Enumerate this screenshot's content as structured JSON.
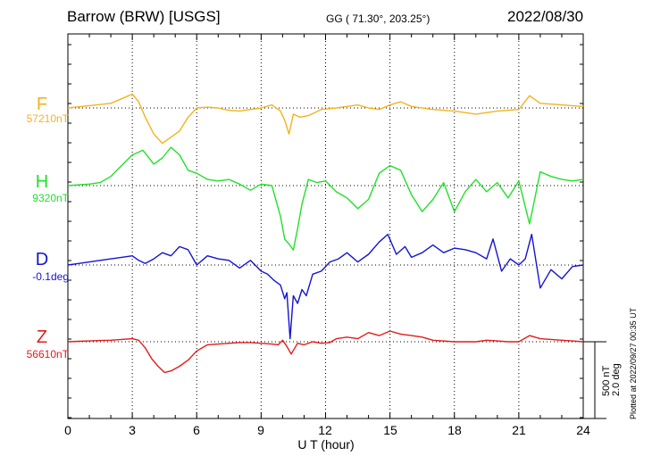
{
  "header": {
    "station": "Barrow (BRW)  [USGS]",
    "coords": "GG ( 71.30°, 203.25°)",
    "date": "2022/08/30"
  },
  "components": [
    {
      "letter": "F",
      "baseline": "57210nT",
      "color": "#f5b21e"
    },
    {
      "letter": "H",
      "baseline": "9320nT",
      "color": "#22e02a"
    },
    {
      "letter": "D",
      "baseline": "-0.1deg",
      "color": "#1414d2"
    },
    {
      "letter": "Z",
      "baseline": "56610nT",
      "color": "#e31b1b"
    }
  ],
  "scale_bar": {
    "nt": "500 nT",
    "deg": "2.0 deg"
  },
  "plotted_at": "Plotted at 2022/09/27 00:35 UT",
  "chart_data": {
    "type": "line",
    "xlabel": "U T (hour)",
    "xlim": [
      0,
      24
    ],
    "x_ticks": [
      "0",
      "3",
      "6",
      "9",
      "12",
      "15",
      "18",
      "21",
      "24"
    ],
    "series": [
      {
        "name": "F",
        "color": "#f5b21e",
        "x": [
          0,
          1,
          2,
          2.5,
          3,
          3.3,
          3.6,
          4,
          4.4,
          4.8,
          5.2,
          5.6,
          6,
          6.5,
          7,
          7.5,
          8,
          8.5,
          9,
          9.5,
          9.9,
          10.1,
          10.3,
          10.5,
          10.8,
          11.2,
          11.8,
          12.5,
          13,
          13.5,
          14,
          14.5,
          15,
          15.5,
          16,
          17,
          18,
          19,
          20,
          21,
          21.5,
          22,
          23,
          24
        ],
        "y": [
          0,
          15,
          30,
          60,
          90,
          40,
          -60,
          -170,
          -230,
          -190,
          -150,
          -60,
          0,
          5,
          0,
          -15,
          -20,
          -10,
          0,
          20,
          -20,
          -80,
          -170,
          -40,
          -60,
          -50,
          -10,
          0,
          10,
          20,
          0,
          -10,
          20,
          40,
          10,
          -10,
          -20,
          -40,
          -20,
          -10,
          80,
          30,
          20,
          10
        ]
      },
      {
        "name": "H",
        "color": "#22e02a",
        "x": [
          0,
          1,
          1.5,
          2,
          2.5,
          3,
          3.5,
          4,
          4.4,
          4.8,
          5.2,
          5.6,
          6,
          6.5,
          7,
          7.5,
          8,
          8.5,
          9,
          9.5,
          9.9,
          10.1,
          10.3,
          10.5,
          10.7,
          10.9,
          11.2,
          11.6,
          12,
          12.5,
          13,
          13.5,
          14,
          14.5,
          15,
          15.5,
          16,
          16.5,
          17,
          17.5,
          18,
          18.5,
          19,
          19.5,
          20,
          20.5,
          21,
          21.5,
          22,
          22.5,
          23,
          23.5,
          24
        ],
        "y": [
          0,
          10,
          20,
          60,
          130,
          200,
          230,
          140,
          180,
          250,
          200,
          100,
          80,
          40,
          30,
          40,
          10,
          -30,
          10,
          0,
          -200,
          -350,
          -380,
          -420,
          -280,
          -120,
          40,
          20,
          30,
          -40,
          -80,
          -150,
          -90,
          80,
          130,
          100,
          -60,
          -170,
          -90,
          20,
          -170,
          -40,
          40,
          -40,
          20,
          -80,
          30,
          -250,
          90,
          60,
          40,
          30,
          40
        ]
      },
      {
        "name": "D",
        "color": "#1414d2",
        "x": [
          0,
          0.5,
          1,
          1.5,
          2,
          2.5,
          3,
          3.3,
          3.6,
          4,
          4.4,
          4.8,
          5.2,
          5.6,
          6,
          6.5,
          7,
          7.5,
          8,
          8.5,
          9,
          9.3,
          9.6,
          9.9,
          10.1,
          10.2,
          10.35,
          10.5,
          10.7,
          10.9,
          11.1,
          11.4,
          11.8,
          12.2,
          12.6,
          13,
          13.5,
          14,
          14.5,
          14.9,
          15.3,
          15.7,
          16,
          16.5,
          17,
          17.5,
          18,
          18.5,
          19,
          19.5,
          19.8,
          20.2,
          20.6,
          21,
          21.3,
          21.6,
          22,
          22.5,
          23,
          23.5,
          24
        ],
        "y": [
          0,
          10,
          20,
          30,
          40,
          50,
          60,
          30,
          10,
          40,
          80,
          60,
          120,
          100,
          0,
          60,
          40,
          30,
          -20,
          30,
          -40,
          -60,
          -100,
          -130,
          -220,
          -180,
          -480,
          -200,
          -250,
          -160,
          -200,
          -60,
          -40,
          20,
          40,
          80,
          20,
          70,
          150,
          200,
          70,
          120,
          50,
          80,
          130,
          80,
          110,
          100,
          80,
          40,
          170,
          -40,
          40,
          0,
          40,
          200,
          -150,
          -30,
          -90,
          -10,
          0
        ]
      },
      {
        "name": "Z",
        "color": "#e31b1b",
        "x": [
          0,
          0.5,
          1,
          1.5,
          2,
          2.5,
          3,
          3.3,
          3.6,
          3.9,
          4.2,
          4.5,
          4.8,
          5.2,
          5.6,
          6,
          6.5,
          7,
          7.5,
          8,
          8.5,
          9,
          9.5,
          9.8,
          10,
          10.2,
          10.4,
          10.7,
          11,
          11.4,
          11.8,
          12.2,
          12.5,
          13,
          13.5,
          14,
          14.5,
          15,
          15.5,
          16,
          16.5,
          17,
          18,
          19,
          19.5,
          20,
          20.5,
          21,
          21.5,
          22,
          22.5,
          23,
          23.5,
          24
        ],
        "y": [
          0,
          3,
          5,
          8,
          10,
          15,
          20,
          10,
          -40,
          -110,
          -160,
          -200,
          -190,
          -160,
          -120,
          -60,
          -20,
          -15,
          -10,
          -5,
          -5,
          -10,
          -15,
          -20,
          10,
          -30,
          -80,
          -10,
          -20,
          0,
          -10,
          -5,
          20,
          30,
          20,
          60,
          40,
          70,
          50,
          40,
          30,
          10,
          0,
          0,
          10,
          5,
          0,
          0,
          40,
          20,
          15,
          10,
          5,
          0
        ]
      }
    ]
  }
}
